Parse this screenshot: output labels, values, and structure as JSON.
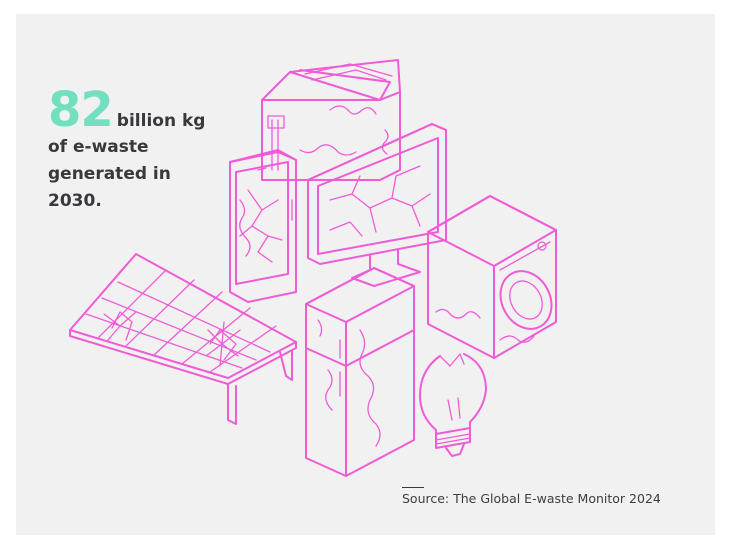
{
  "stat": {
    "number": "82",
    "unit": "billion kg",
    "line1": "of e-waste",
    "line2": "generated in",
    "line3": "2030."
  },
  "source": {
    "text": "Source: The Global E-waste Monitor 2024"
  },
  "colors": {
    "background": "#f1f1f1",
    "accent_number": "#72dfc1",
    "illustration": "#ef5cd6",
    "text": "#38383d"
  },
  "illustration": {
    "items": [
      "toaster-icon",
      "smartphone-icon",
      "monitor-icon",
      "solar-panel-icon",
      "refrigerator-icon",
      "washing-machine-icon",
      "light-bulb-icon"
    ]
  }
}
